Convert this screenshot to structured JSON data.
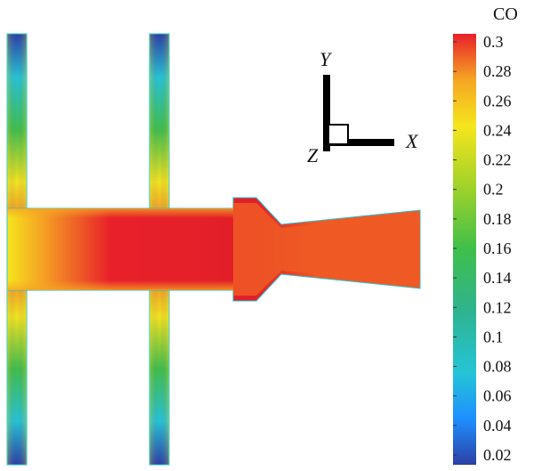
{
  "colorbar": {
    "title": "CO",
    "ticks": [
      "0.3",
      "0.28",
      "0.26",
      "0.24",
      "0.22",
      "0.2",
      "0.18",
      "0.16",
      "0.14",
      "0.12",
      "0.1",
      "0.08",
      "0.06",
      "0.04",
      "0.02"
    ],
    "range": [
      0.02,
      0.3
    ],
    "stops": [
      {
        "value": 0.02,
        "color": "#2b3fa6"
      },
      {
        "value": 0.05,
        "color": "#1e90ff"
      },
      {
        "value": 0.08,
        "color": "#25c4d6"
      },
      {
        "value": 0.12,
        "color": "#2eb38f"
      },
      {
        "value": 0.16,
        "color": "#3fbf4a"
      },
      {
        "value": 0.2,
        "color": "#9fd22a"
      },
      {
        "value": 0.24,
        "color": "#f5e51d"
      },
      {
        "value": 0.27,
        "color": "#f5a623"
      },
      {
        "value": 0.3,
        "color": "#e8202a"
      }
    ]
  },
  "triad": {
    "x_label": "X",
    "y_label": "Y",
    "z_label": "Z"
  },
  "field_colors": {
    "low": "#2b3fa6",
    "mid": "#25c4d6",
    "green": "#3fbf4a",
    "yellow": "#f5e51d",
    "orange": "#ef5a24",
    "red": "#e11f28"
  }
}
